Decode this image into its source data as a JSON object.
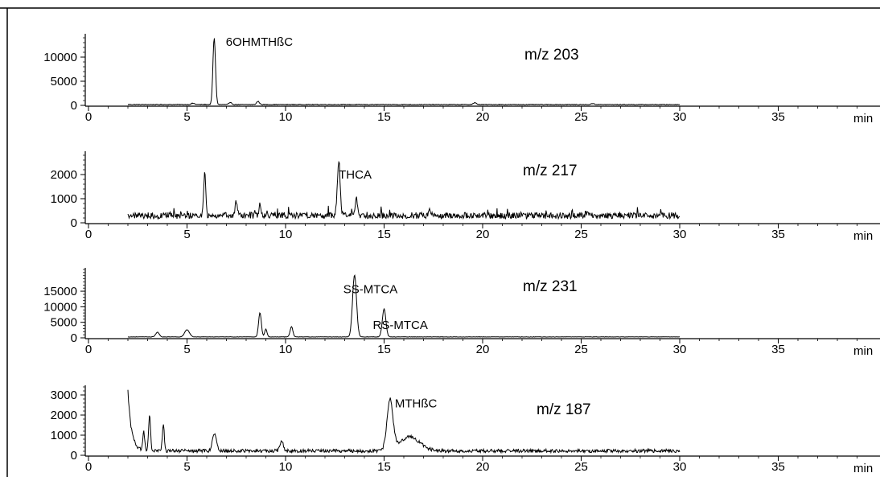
{
  "chart_data": [
    {
      "type": "line",
      "mz_label": "m/z  203",
      "xlabel": "min",
      "xlim": [
        0,
        40
      ],
      "x_ticks": [
        0,
        5,
        10,
        15,
        20,
        25,
        30,
        35
      ],
      "x_tick_labels": [
        "0",
        "5",
        "10",
        "15",
        "20",
        "25",
        "30",
        "35"
      ],
      "ylim": [
        0,
        14500
      ],
      "y_ticks": [
        0,
        5000,
        10000
      ],
      "y_tick_labels": [
        "0",
        "5000",
        "10000"
      ],
      "x_range": [
        2,
        30
      ],
      "baseline": 180,
      "noise": 140,
      "peaks": [
        {
          "x": 5.3,
          "h": 250,
          "w": 0.08
        },
        {
          "x": 6.38,
          "h": 13800,
          "w": 0.065
        },
        {
          "x": 7.2,
          "h": 350,
          "w": 0.08
        },
        {
          "x": 8.6,
          "h": 650,
          "w": 0.07
        },
        {
          "x": 19.6,
          "h": 350,
          "w": 0.08
        },
        {
          "x": 25.6,
          "h": 200,
          "w": 0.08
        }
      ],
      "annotations": [
        {
          "text": "6OHMTHßC",
          "x": 6.4,
          "y": 13800
        }
      ]
    },
    {
      "type": "line",
      "mz_label": "m/z  217",
      "xlabel": "min",
      "xlim": [
        0,
        40
      ],
      "x_ticks": [
        0,
        5,
        10,
        15,
        20,
        25,
        30,
        35
      ],
      "x_tick_labels": [
        "0",
        "5",
        "10",
        "15",
        "20",
        "25",
        "30",
        "35"
      ],
      "ylim": [
        0,
        2900
      ],
      "y_ticks": [
        0,
        1000,
        2000
      ],
      "y_tick_labels": [
        "0",
        "1000",
        "2000"
      ],
      "x_range": [
        2,
        30
      ],
      "baseline": 300,
      "noise": 260,
      "peaks": [
        {
          "x": 5.9,
          "h": 1900,
          "w": 0.05
        },
        {
          "x": 7.5,
          "h": 600,
          "w": 0.05
        },
        {
          "x": 8.7,
          "h": 500,
          "w": 0.05
        },
        {
          "x": 12.7,
          "h": 2300,
          "w": 0.07
        },
        {
          "x": 13.6,
          "h": 700,
          "w": 0.06
        },
        {
          "x": 17.3,
          "h": 250,
          "w": 0.05
        }
      ],
      "annotations": [
        {
          "text": "THCA",
          "x": 12.7,
          "y": 2300
        }
      ]
    },
    {
      "type": "line",
      "mz_label": "m/z  231",
      "xlabel": "min",
      "xlim": [
        0,
        40
      ],
      "x_ticks": [
        0,
        5,
        10,
        15,
        20,
        25,
        30,
        35
      ],
      "x_tick_labels": [
        "0",
        "5",
        "10",
        "15",
        "20",
        "25",
        "30",
        "35"
      ],
      "ylim": [
        0,
        22000
      ],
      "y_ticks": [
        0,
        5000,
        10000,
        15000
      ],
      "y_tick_labels": [
        "0",
        "5000",
        "10000",
        "15000"
      ],
      "x_range": [
        2,
        30
      ],
      "baseline": 300,
      "noise": 120,
      "peaks": [
        {
          "x": 3.5,
          "h": 1500,
          "w": 0.09
        },
        {
          "x": 5.0,
          "h": 2300,
          "w": 0.12
        },
        {
          "x": 8.7,
          "h": 7800,
          "w": 0.07
        },
        {
          "x": 9.0,
          "h": 2500,
          "w": 0.06
        },
        {
          "x": 10.3,
          "h": 3300,
          "w": 0.07
        },
        {
          "x": 13.5,
          "h": 20000,
          "w": 0.1
        },
        {
          "x": 15.0,
          "h": 9000,
          "w": 0.09
        }
      ],
      "annotations": [
        {
          "text": "SS-MTCA",
          "x": 13.5,
          "y": 20000
        },
        {
          "text": "RS-MTCA",
          "x": 15.0,
          "y": 9000
        }
      ]
    },
    {
      "type": "line",
      "mz_label": "m/z  187",
      "xlabel": "min",
      "xlim": [
        0,
        40
      ],
      "x_ticks": [
        0,
        5,
        10,
        15,
        20,
        25,
        30,
        35
      ],
      "x_tick_labels": [
        "0",
        "5",
        "10",
        "15",
        "20",
        "25",
        "30",
        "35"
      ],
      "ylim": [
        0,
        3400
      ],
      "y_ticks": [
        0,
        1000,
        2000,
        3000
      ],
      "y_tick_labels": [
        "0",
        "1000",
        "2000",
        "3000"
      ],
      "x_range": [
        2,
        30
      ],
      "baseline": 220,
      "noise": 170,
      "start_value": 3200,
      "peaks": [
        {
          "x": 2.8,
          "h": 900,
          "w": 0.05
        },
        {
          "x": 3.1,
          "h": 1800,
          "w": 0.05
        },
        {
          "x": 3.8,
          "h": 1300,
          "w": 0.05
        },
        {
          "x": 6.4,
          "h": 900,
          "w": 0.1
        },
        {
          "x": 9.8,
          "h": 500,
          "w": 0.08
        },
        {
          "x": 15.3,
          "h": 2500,
          "w": 0.15
        },
        {
          "x": 16.3,
          "h": 700,
          "w": 0.5
        }
      ],
      "annotations": [
        {
          "text": "MTHßC",
          "x": 15.3,
          "y": 2500
        }
      ]
    }
  ]
}
